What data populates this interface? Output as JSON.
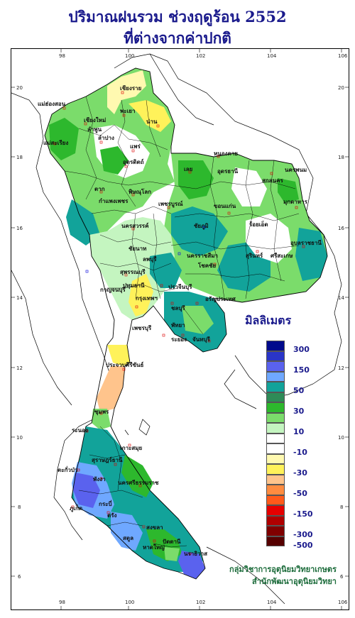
{
  "title_line1": "ปริมาณฝนรวม ช่วงฤดูร้อน 2552",
  "title_line2": "ที่ต่างจากค่าปกติ",
  "legend": {
    "title": "มิลลิเมตร",
    "classes": [
      {
        "color": "#000a8c",
        "label": "300"
      },
      {
        "color": "#2a35c8",
        "label": ""
      },
      {
        "color": "#5a62ee",
        "label": "150"
      },
      {
        "color": "#6fa8ff",
        "label": ""
      },
      {
        "color": "#12a39a",
        "label": "50"
      },
      {
        "color": "#2e8b57",
        "label": ""
      },
      {
        "color": "#2db82d",
        "label": "30"
      },
      {
        "color": "#7bdc6b",
        "label": ""
      },
      {
        "color": "#c4f5c0",
        "label": "10"
      },
      {
        "color": "#ffffff",
        "label": ""
      },
      {
        "color": "#ffffff",
        "label": "-10"
      },
      {
        "color": "#fff9b0",
        "label": ""
      },
      {
        "color": "#fff25a",
        "label": "-30"
      },
      {
        "color": "#ffc48c",
        "label": ""
      },
      {
        "color": "#ff8c40",
        "label": "-50"
      },
      {
        "color": "#ff5a1a",
        "label": ""
      },
      {
        "color": "#e60000",
        "label": "-150"
      },
      {
        "color": "#b00000",
        "label": ""
      },
      {
        "color": "#800000",
        "label": "-300"
      },
      {
        "color": "#560000",
        "label": "-500"
      }
    ]
  },
  "credit_line1": "กลุ่มวิชาการอุตุนิยมวิทยาเกษตร",
  "credit_line2": "สำนักพัฒนาอุตุนิยมวิทยา",
  "axes": {
    "lon_ticks": [
      "98",
      "100",
      "102",
      "104",
      "106"
    ],
    "lat_ticks": [
      "20",
      "18",
      "16",
      "14",
      "12",
      "10",
      "8",
      "6"
    ]
  },
  "provinces": [
    {
      "id": "chiangrai",
      "label": "เชียงราย"
    },
    {
      "id": "maehongson",
      "label": "แม่ฮ่องสอน"
    },
    {
      "id": "chiangmai",
      "label": "เชียงใหม่"
    },
    {
      "id": "phayao",
      "label": "พะเยา"
    },
    {
      "id": "lamphun",
      "label": "ลำพูน"
    },
    {
      "id": "lampang",
      "label": "ลำปาง"
    },
    {
      "id": "nan",
      "label": "น่าน"
    },
    {
      "id": "phrae",
      "label": "แพร่"
    },
    {
      "id": "maesariang",
      "label": "แม่สะเรียง"
    },
    {
      "id": "uttaradit",
      "label": "อุตรดิตถ์"
    },
    {
      "id": "nongkhai",
      "label": "หนองคาย"
    },
    {
      "id": "loei",
      "label": "เลย"
    },
    {
      "id": "udonthani",
      "label": "อุดรธานี"
    },
    {
      "id": "nakhonphanom",
      "label": "นครพนม"
    },
    {
      "id": "sakonnakhon",
      "label": "สกลนคร"
    },
    {
      "id": "tak",
      "label": "ตาก"
    },
    {
      "id": "phitsanulok",
      "label": "พิษณุโลก"
    },
    {
      "id": "mukdahan",
      "label": "มุกดาหาร"
    },
    {
      "id": "kamphaengphet",
      "label": "กำแพงเพชร"
    },
    {
      "id": "phetchabun",
      "label": "เพชรบูรณ์"
    },
    {
      "id": "khonkaen",
      "label": "ขอนแก่น"
    },
    {
      "id": "nakhonsawan",
      "label": "นครสวรรค์"
    },
    {
      "id": "chaiyaphum",
      "label": "ชัยภูมิ"
    },
    {
      "id": "roiet",
      "label": "ร้อยเอ็ด"
    },
    {
      "id": "ubon",
      "label": "อุบลราชธานี"
    },
    {
      "id": "chainat",
      "label": "ชัยนาท"
    },
    {
      "id": "lopburi",
      "label": "ลพบุรี"
    },
    {
      "id": "nakhonratchasima",
      "label": "นครราชสีมา"
    },
    {
      "id": "surin",
      "label": "สุรินทร์"
    },
    {
      "id": "suphanburi",
      "label": "สุพรรณบุรี"
    },
    {
      "id": "chokchai",
      "label": "โชคชัย"
    },
    {
      "id": "srisaket",
      "label": "ศรีสะเกษ"
    },
    {
      "id": "kanchanaburi",
      "label": "กาญจนบุรี"
    },
    {
      "id": "pathumthani",
      "label": "ปทุมธานี"
    },
    {
      "id": "prachinburi",
      "label": "ปราจีนบุรี"
    },
    {
      "id": "bangkok",
      "label": "กรุงเทพฯ"
    },
    {
      "id": "aranyaprathet",
      "label": "อรัญประเทศ"
    },
    {
      "id": "chonburi",
      "label": "ชลบุรี"
    },
    {
      "id": "phetchaburi",
      "label": "เพชรบุรี"
    },
    {
      "id": "pattaya",
      "label": "พัทยา"
    },
    {
      "id": "rayong",
      "label": "ระยอง"
    },
    {
      "id": "chanthaburi",
      "label": "จันทบุรี"
    },
    {
      "id": "prachuap",
      "label": "ประจวบคีรีขันธ์"
    },
    {
      "id": "chumphon",
      "label": "ชุมพร"
    },
    {
      "id": "ranong",
      "label": "ระนอง"
    },
    {
      "id": "kosamui",
      "label": "เกาะสมุย"
    },
    {
      "id": "suratthani",
      "label": "สุราษฎร์ธานี"
    },
    {
      "id": "takuapa",
      "label": "ตะกั่วป่า"
    },
    {
      "id": "phangnga",
      "label": "พังงา"
    },
    {
      "id": "nakhonsi",
      "label": "นครศรีธรรมราช"
    },
    {
      "id": "phuket",
      "label": "ภูเก็ต"
    },
    {
      "id": "krabi",
      "label": "กระบี่"
    },
    {
      "id": "trang",
      "label": "ตรัง"
    },
    {
      "id": "satun",
      "label": "สตูล"
    },
    {
      "id": "songkhla",
      "label": "สงขลา"
    },
    {
      "id": "hatyai",
      "label": "หาดใหญ่"
    },
    {
      "id": "pattani",
      "label": "ปัตตานี"
    },
    {
      "id": "narathiwat",
      "label": "นราธิวาส"
    }
  ]
}
